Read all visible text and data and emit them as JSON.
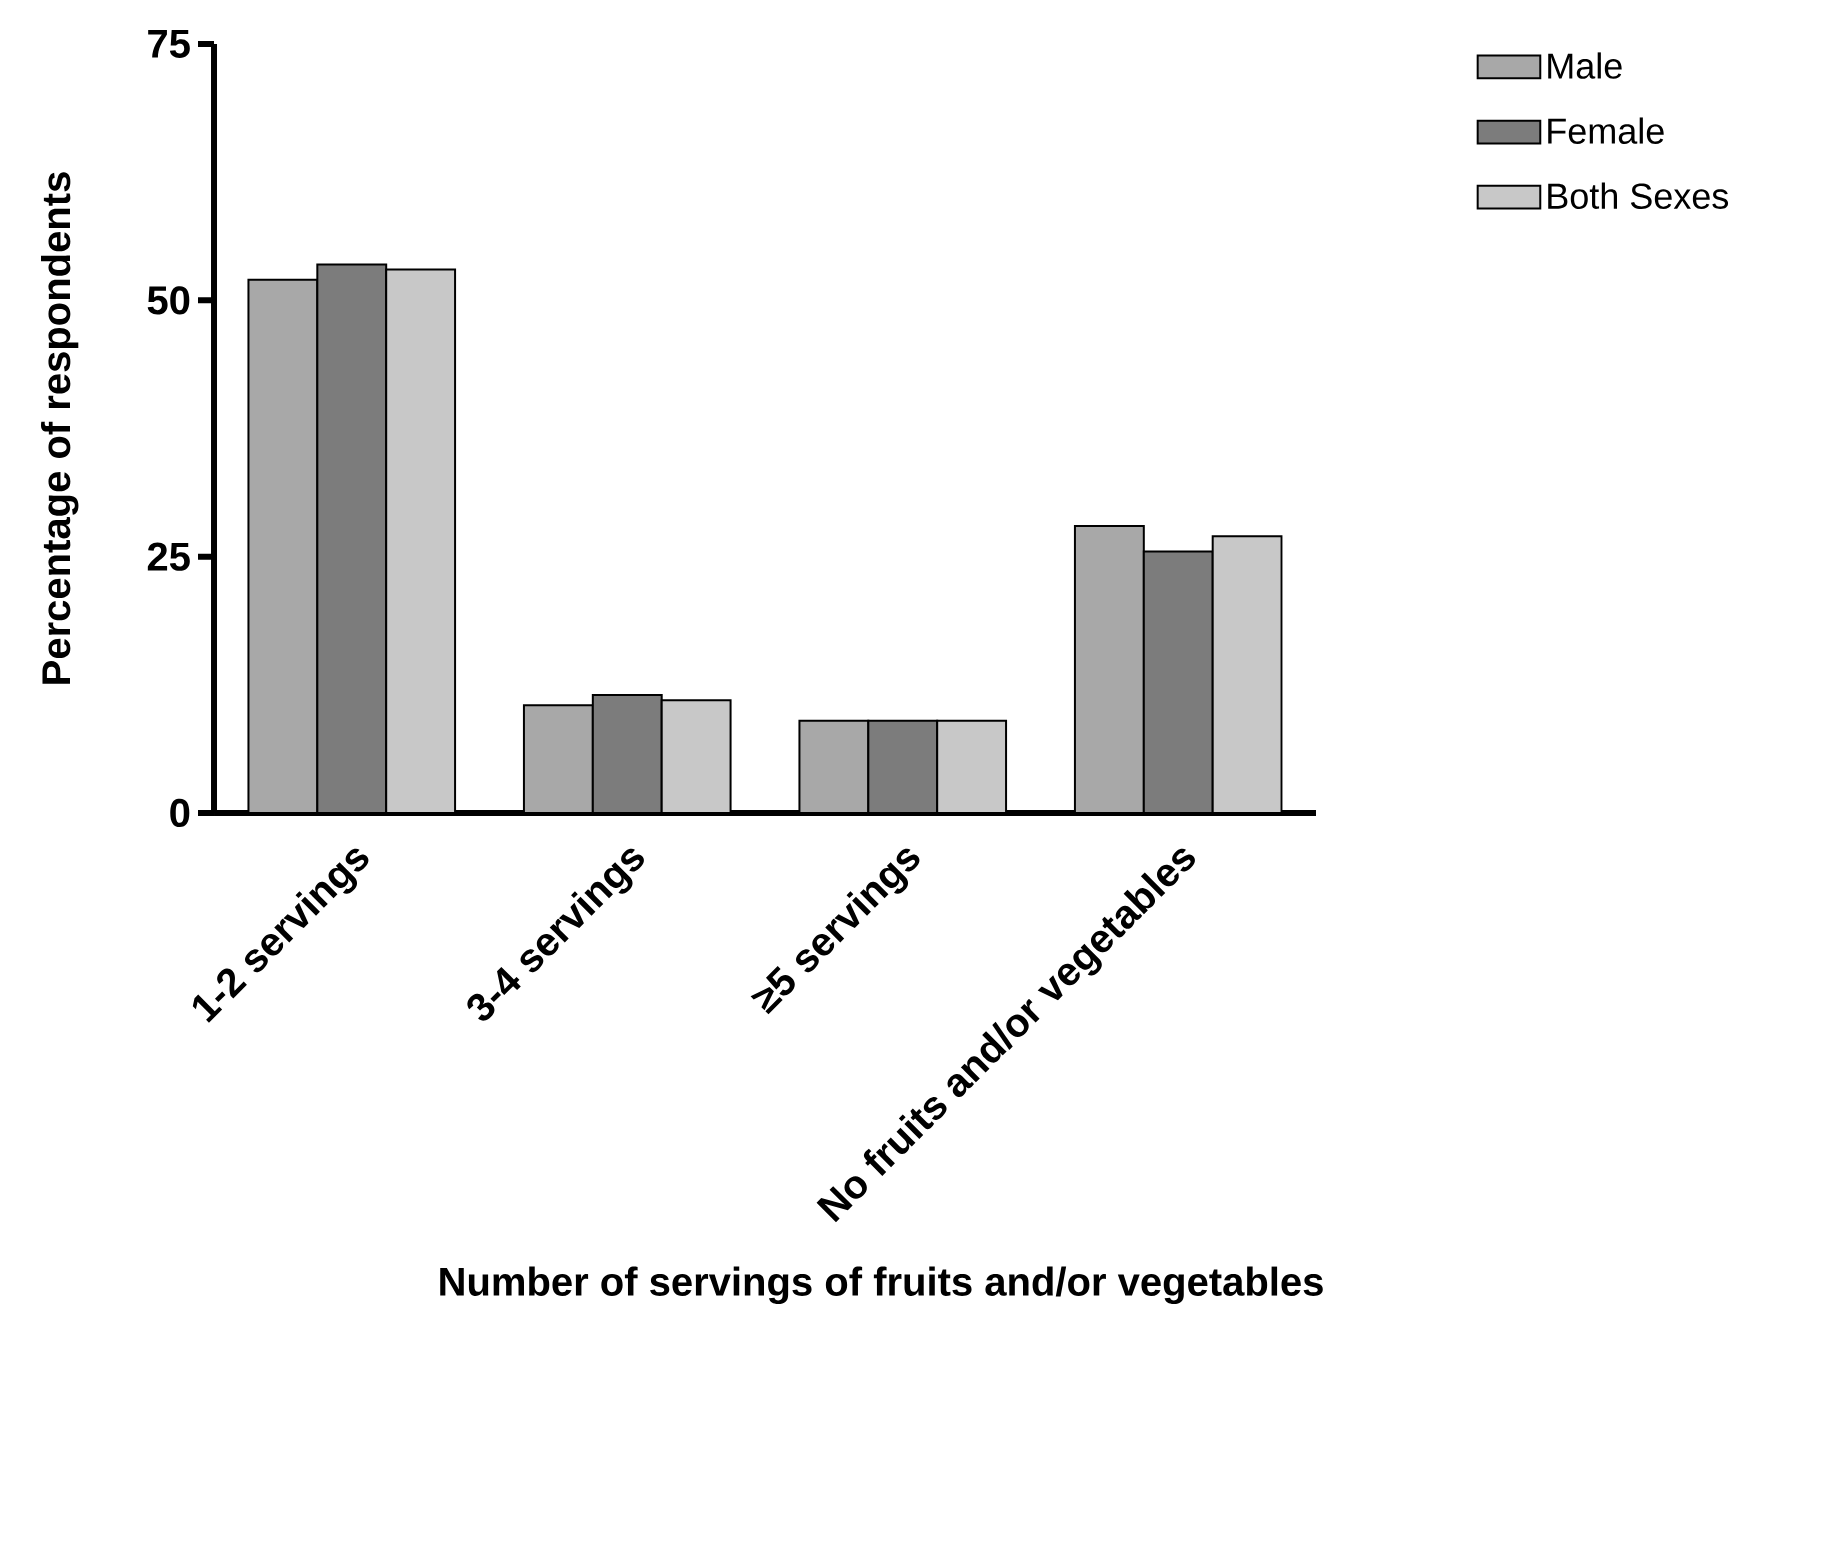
{
  "chart_data": {
    "type": "bar",
    "xlabel": "Number of servings of fruits and/or vegetables",
    "ylabel": "Percentage of respondents",
    "categories": [
      "1-2 servings",
      "3-4 servings",
      "≥5 servings",
      "No fruits and/or vegetables"
    ],
    "series": [
      {
        "name": "Male",
        "color": "#a8a8a8",
        "values": [
          52,
          10.5,
          9,
          28
        ]
      },
      {
        "name": "Female",
        "color": "#7c7c7c",
        "values": [
          53.5,
          11.5,
          9,
          25.5
        ]
      },
      {
        "name": "Both Sexes",
        "color": "#c8c8c8",
        "values": [
          53,
          11,
          9,
          27
        ]
      }
    ],
    "ylim": [
      0,
      75
    ],
    "yticks": [
      0,
      25,
      50,
      75
    ],
    "legend": "top right"
  }
}
